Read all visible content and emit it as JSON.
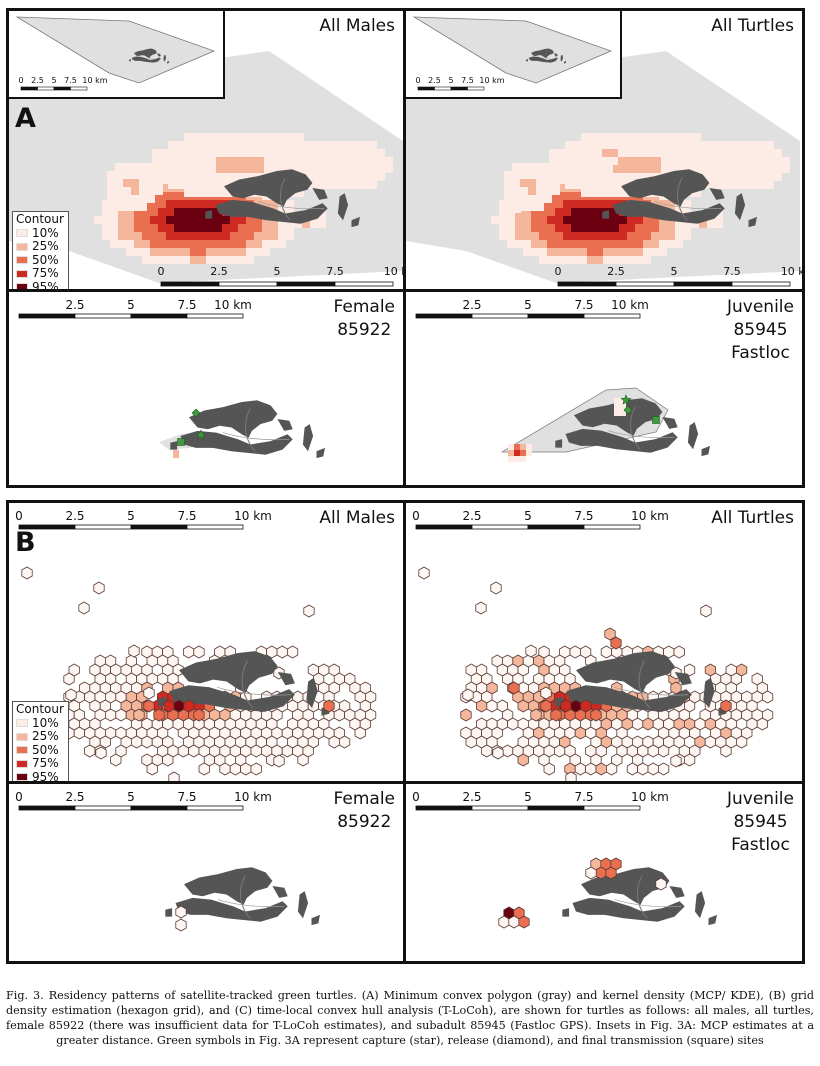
{
  "figure_a": {
    "letter": "A",
    "panels": [
      {
        "title": "All Males",
        "scale": [
          "0",
          "2.5",
          "5",
          "7.5",
          "10 km"
        ]
      },
      {
        "title": "All Turtles",
        "scale": [
          "0",
          "2.5",
          "5",
          "7.5",
          "10 km"
        ]
      },
      {
        "title": "Female 85922",
        "title_lines": [
          "Female",
          "85922"
        ],
        "scale": [
          "2.5",
          "5",
          "7.5",
          "10 km"
        ]
      },
      {
        "title": "Juvenile 85945 Fastloc",
        "title_lines": [
          "Juvenile",
          "85945",
          "Fastloc"
        ],
        "scale": [
          "2.5",
          "5",
          "7.5",
          "10 km"
        ]
      }
    ],
    "inset_scale": [
      "0",
      "2.5",
      "5",
      "7.5",
      "10 km"
    ],
    "legend": {
      "title": "Contour",
      "items": [
        {
          "label": "10%",
          "color": "#fdece6"
        },
        {
          "label": "25%",
          "color": "#f4b79c"
        },
        {
          "label": "50%",
          "color": "#ea6f50"
        },
        {
          "label": "75%",
          "color": "#cf2a22"
        },
        {
          "label": "95%",
          "color": "#6b0010"
        }
      ]
    }
  },
  "figure_b": {
    "letter": "B",
    "panels": [
      {
        "title": "All Males",
        "title_lines": [
          "All Males"
        ],
        "scale": [
          "0",
          "2.5",
          "5",
          "7.5",
          "10 km"
        ]
      },
      {
        "title": "All Turtles",
        "title_lines": [
          "All Turtles"
        ],
        "scale": [
          "0",
          "2.5",
          "5",
          "7.5",
          "10 km"
        ]
      },
      {
        "title": "Female 85922",
        "title_lines": [
          "Female",
          "85922"
        ],
        "scale": [
          "0",
          "2.5",
          "5",
          "7.5",
          "10 km"
        ]
      },
      {
        "title": "Juvenile 85945 Fastloc",
        "title_lines": [
          "Juvenile",
          "85945",
          "Fastloc"
        ],
        "scale": [
          "0",
          "2.5",
          "5",
          "7.5",
          "10 km"
        ]
      }
    ],
    "legend": {
      "title": "Contour",
      "items": [
        {
          "label": "10%",
          "color": "#fdece6"
        },
        {
          "label": "25%",
          "color": "#f4b79c"
        },
        {
          "label": "50%",
          "color": "#ea6f50"
        },
        {
          "label": "75%",
          "color": "#cf2a22"
        },
        {
          "label": "95%",
          "color": "#6b0010"
        }
      ]
    }
  },
  "colors": {
    "mcp_fill": "#e0e0e0",
    "land": "#555555",
    "symbols": "#3f9a3f"
  },
  "caption": "Fig. 3. Residency patterns of satellite-tracked green turtles. (A) Minimum convex polygon (gray) and kernel density (MCP/ KDE), (B) grid density estimation (hexagon grid), and (C) time-local convex hull analysis (T-LoCoh), are shown for turtles as follows: all males, all turtles, female 85922 (there was insufficient data for T-LoCoh estimates), and subadult 85945 (Fastloc GPS). Insets in Fig. 3A: MCP estimates at a greater distance. Green symbols in Fig. 3A represent capture (star), release (diamond), and final transmission (square) sites"
}
